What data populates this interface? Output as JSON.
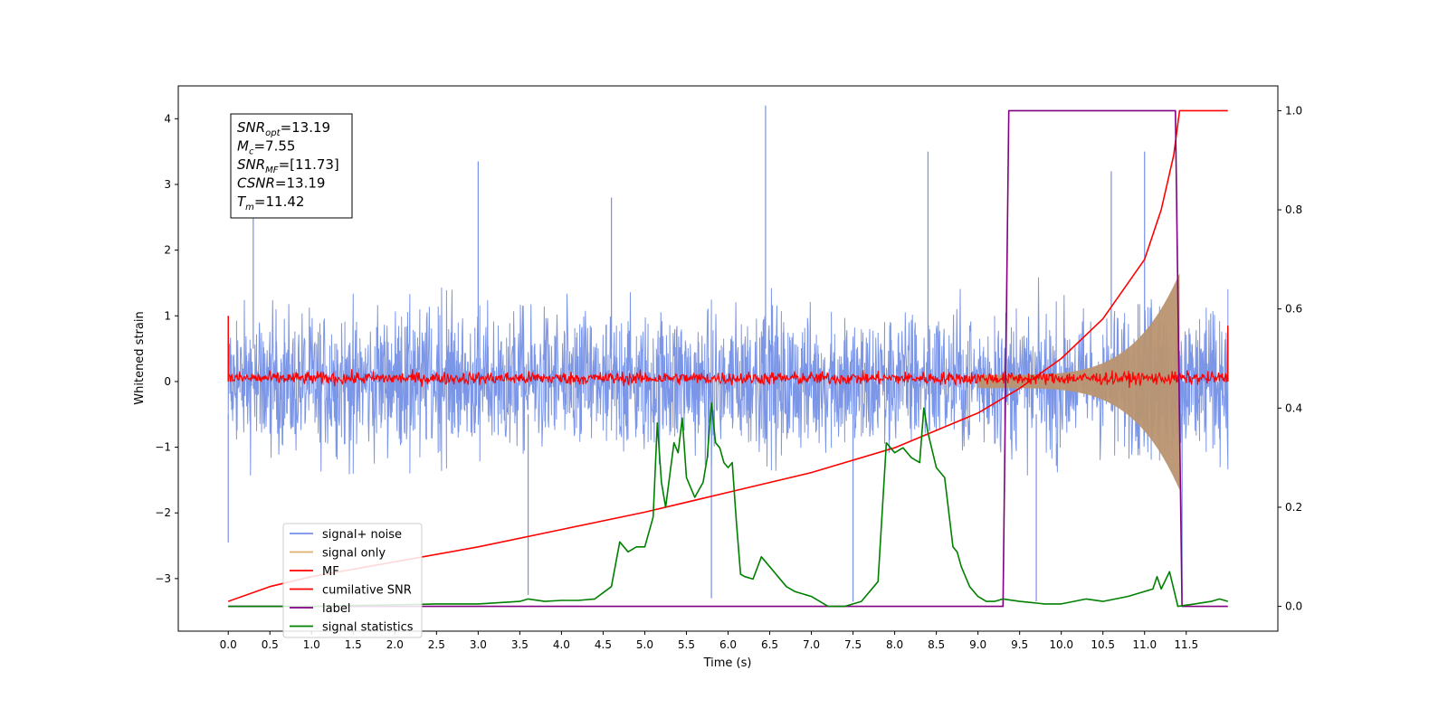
{
  "chart_data": {
    "type": "line",
    "title": "",
    "xlabel": "Time (s)",
    "ylabel": "Whitened strain",
    "y2label": "",
    "xlim": [
      -0.6,
      12.6
    ],
    "ylim": [
      -3.8,
      4.5
    ],
    "y2lim": [
      -0.05,
      1.05
    ],
    "x_ticks": [
      0.0,
      0.5,
      1.0,
      1.5,
      2.0,
      2.5,
      3.0,
      3.5,
      4.0,
      4.5,
      5.0,
      5.5,
      6.0,
      6.5,
      7.0,
      7.5,
      8.0,
      8.5,
      9.0,
      9.5,
      10.0,
      10.5,
      11.0,
      11.5
    ],
    "x_tick_labels": [
      "0.0",
      "0.5",
      "1.0",
      "1.5",
      "2.0",
      "2.5",
      "3.0",
      "3.5",
      "4.0",
      "4.5",
      "5.0",
      "5.5",
      "6.0",
      "6.5",
      "7.0",
      "7.5",
      "8.0",
      "8.5",
      "9.0",
      "9.5",
      "10.0",
      "10.5",
      "11.0",
      "11.5"
    ],
    "y_ticks": [
      -3,
      -2,
      -1,
      0,
      1,
      2,
      3,
      4
    ],
    "y_tick_labels": [
      "−3",
      "−2",
      "−1",
      "0",
      "1",
      "2",
      "3",
      "4"
    ],
    "y2_ticks": [
      0.0,
      0.2,
      0.4,
      0.6,
      0.8,
      1.0
    ],
    "y2_tick_labels": [
      "0.0",
      "0.2",
      "0.4",
      "0.6",
      "0.8",
      "1.0"
    ],
    "grid": false,
    "legend_position": "lower-left",
    "annotation": {
      "lines": [
        {
          "base": "SNR",
          "sub": "opt",
          "value": "=13.19"
        },
        {
          "base": "M",
          "sub": "c",
          "value": "=7.55"
        },
        {
          "base": "SNR",
          "sub": "MF",
          "value": "=[11.73]"
        },
        {
          "base": "CSNR",
          "sub": "",
          "value": "=13.19"
        },
        {
          "base": "T",
          "sub": "m",
          "value": "=11.42"
        }
      ]
    },
    "series": [
      {
        "name": "signal+ noise",
        "color": "#7590e6",
        "axis": "left",
        "style": "noise-band",
        "x_range": [
          0.0,
          12.0
        ],
        "amplitude": 1.0,
        "peak_x": [
          0.3,
          3.0,
          4.6,
          6.45,
          8.4,
          10.6,
          11.0
        ],
        "peak_y": [
          3.4,
          3.35,
          2.8,
          4.2,
          3.5,
          3.2,
          3.5
        ],
        "trough_x": [
          0.0,
          3.6,
          5.8,
          7.5,
          9.7,
          11.45
        ],
        "trough_y": [
          -2.45,
          -3.25,
          -3.3,
          -3.35,
          -3.35,
          -3.3
        ]
      },
      {
        "name": "signal only",
        "color": "#ddb06c",
        "axis": "left",
        "style": "chirp",
        "x_range": [
          9.0,
          11.42
        ],
        "amplitude_end": 1.55
      },
      {
        "name": "MF",
        "color": "#ff0000",
        "axis": "left",
        "style": "noise-band",
        "x_range": [
          0.0,
          12.0
        ],
        "center": 0.05,
        "amplitude": 0.1,
        "end_spikes": [
          [
            0.0,
            1.0
          ],
          [
            12.0,
            0.85
          ]
        ]
      },
      {
        "name": "cumilative SNR",
        "color": "#ff0000",
        "axis": "right",
        "x": [
          0.0,
          0.5,
          1.0,
          2.0,
          3.0,
          4.0,
          5.0,
          6.0,
          7.0,
          8.0,
          9.0,
          9.5,
          10.0,
          10.5,
          11.0,
          11.2,
          11.35,
          11.42,
          12.0
        ],
        "values": [
          0.01,
          0.04,
          0.06,
          0.09,
          0.12,
          0.155,
          0.19,
          0.23,
          0.27,
          0.32,
          0.39,
          0.44,
          0.5,
          0.58,
          0.7,
          0.8,
          0.91,
          1.0,
          1.0
        ]
      },
      {
        "name": "label",
        "color": "#800080",
        "axis": "right",
        "x": [
          0.0,
          9.3,
          9.37,
          11.37,
          11.45,
          12.0
        ],
        "values": [
          0.0,
          0.0,
          1.0,
          1.0,
          0.0,
          0.0
        ]
      },
      {
        "name": "signal statistics",
        "color": "#008000",
        "axis": "right",
        "x": [
          0.0,
          0.5,
          1.0,
          1.5,
          2.0,
          2.5,
          3.0,
          3.5,
          3.6,
          3.8,
          4.0,
          4.2,
          4.4,
          4.6,
          4.7,
          4.8,
          4.9,
          5.0,
          5.1,
          5.15,
          5.2,
          5.25,
          5.35,
          5.4,
          5.45,
          5.5,
          5.6,
          5.7,
          5.75,
          5.8,
          5.85,
          5.9,
          5.95,
          6.0,
          6.05,
          6.1,
          6.15,
          6.2,
          6.3,
          6.4,
          6.5,
          6.6,
          6.7,
          6.8,
          7.0,
          7.2,
          7.4,
          7.6,
          7.8,
          7.9,
          8.0,
          8.1,
          8.2,
          8.3,
          8.35,
          8.4,
          8.5,
          8.6,
          8.7,
          8.75,
          8.8,
          8.9,
          9.0,
          9.1,
          9.2,
          9.3,
          9.5,
          9.8,
          10.0,
          10.3,
          10.5,
          10.8,
          11.0,
          11.1,
          11.15,
          11.2,
          11.3,
          11.4,
          11.6,
          11.8,
          11.9,
          12.0
        ],
        "values": [
          0.0,
          0.0,
          0.0,
          0.002,
          0.003,
          0.005,
          0.005,
          0.01,
          0.015,
          0.01,
          0.012,
          0.012,
          0.015,
          0.04,
          0.13,
          0.11,
          0.12,
          0.12,
          0.18,
          0.37,
          0.25,
          0.2,
          0.33,
          0.31,
          0.38,
          0.26,
          0.22,
          0.25,
          0.3,
          0.41,
          0.33,
          0.32,
          0.29,
          0.28,
          0.29,
          0.17,
          0.065,
          0.06,
          0.055,
          0.1,
          0.08,
          0.06,
          0.04,
          0.03,
          0.02,
          0.0,
          0.0,
          0.01,
          0.05,
          0.33,
          0.31,
          0.32,
          0.3,
          0.29,
          0.4,
          0.35,
          0.28,
          0.26,
          0.12,
          0.11,
          0.08,
          0.04,
          0.02,
          0.01,
          0.01,
          0.015,
          0.01,
          0.005,
          0.005,
          0.015,
          0.01,
          0.02,
          0.03,
          0.035,
          0.06,
          0.035,
          0.07,
          0.0,
          0.005,
          0.01,
          0.015,
          0.01
        ]
      }
    ]
  }
}
